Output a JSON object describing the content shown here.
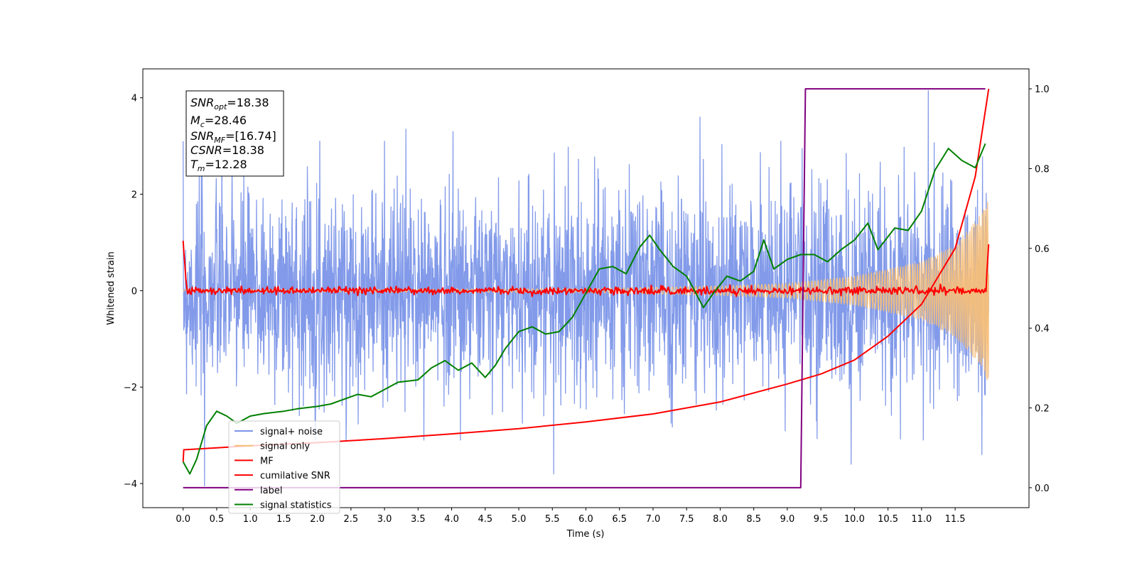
{
  "chart_data": {
    "type": "line",
    "xlabel": "Time (s)",
    "ylabel_left": "Whitened strain",
    "ylabel_right": "",
    "xlim": [
      -0.6,
      12.6
    ],
    "ylim_left": [
      -4.5,
      4.6
    ],
    "ylim_right": [
      -0.05,
      1.05
    ],
    "x_ticks": [
      0.0,
      0.5,
      1.0,
      1.5,
      2.0,
      2.5,
      3.0,
      3.5,
      4.0,
      4.5,
      5.0,
      5.5,
      6.0,
      6.5,
      7.0,
      7.5,
      8.0,
      8.5,
      9.0,
      9.5,
      10.0,
      10.5,
      11.0,
      11.5
    ],
    "x_tick_labels": [
      "0.0",
      "0.5",
      "1.0",
      "1.5",
      "2.0",
      "2.5",
      "3.0",
      "3.5",
      "4.0",
      "4.5",
      "5.0",
      "5.5",
      "6.0",
      "6.5",
      "7.0",
      "7.5",
      "8.0",
      "8.5",
      "9.0",
      "9.5",
      "10.0",
      "10.5",
      "11.0",
      "11.5"
    ],
    "y_left_ticks": [
      -4,
      -2,
      0,
      2,
      4
    ],
    "y_left_tick_labels": [
      "−4",
      "−2",
      "0",
      "2",
      "4"
    ],
    "y_right_ticks": [
      0.0,
      0.2,
      0.4,
      0.6,
      0.8,
      1.0
    ],
    "y_right_tick_labels": [
      "0.0",
      "0.2",
      "0.4",
      "0.6",
      "0.8",
      "1.0"
    ],
    "grid": false,
    "legend_position": "lower-left",
    "annotation": {
      "lines": [
        {
          "base": "SNR",
          "sub": "opt",
          "value": "=18.38"
        },
        {
          "base": "M",
          "sub": "c",
          "value": "=28.46"
        },
        {
          "base": "SNR",
          "sub": "MF",
          "value": "=[16.74]"
        },
        {
          "base": "CSNR",
          "sub": "",
          "value": "=18.38"
        },
        {
          "base": "T",
          "sub": "m",
          "value": "=12.28"
        }
      ]
    },
    "series": [
      {
        "name": "signal+ noise",
        "axis": "left",
        "color": "#7b95e8",
        "kind": "noisy",
        "x_range": [
          0.0,
          12.0
        ],
        "std": 1.05,
        "extrema": [
          {
            "x": 0.32,
            "y": -4.05
          },
          {
            "x": 3.32,
            "y": 3.35
          },
          {
            "x": 4.02,
            "y": 3.3
          },
          {
            "x": 5.52,
            "y": -3.8
          },
          {
            "x": 7.7,
            "y": 3.6
          },
          {
            "x": 9.22,
            "y": 2.95
          },
          {
            "x": 9.95,
            "y": -3.6
          },
          {
            "x": 11.1,
            "y": 4.15
          },
          {
            "x": 11.9,
            "y": -3.4
          }
        ]
      },
      {
        "name": "signal only",
        "axis": "left",
        "color": "#f5bf7a",
        "kind": "chirp",
        "x_range": [
          0.0,
          12.0
        ],
        "amp_points": [
          [
            0.0,
            0.02
          ],
          [
            6.0,
            0.04
          ],
          [
            8.0,
            0.1
          ],
          [
            9.0,
            0.15
          ],
          [
            10.0,
            0.3
          ],
          [
            11.0,
            0.6
          ],
          [
            11.5,
            0.95
          ],
          [
            11.9,
            1.6
          ],
          [
            12.0,
            2.0
          ]
        ]
      },
      {
        "name": "MF",
        "axis": "left",
        "color": "#ff0000",
        "kind": "mf",
        "x_range": [
          0.0,
          12.0
        ],
        "start": 1.0,
        "end": 1.0,
        "wiggle": 0.04
      },
      {
        "name": "cumilative SNR",
        "axis": "right",
        "color": "#ff0000",
        "kind": "curve",
        "points": [
          [
            0.0,
            0.065
          ],
          [
            0.01,
            0.095
          ],
          [
            0.5,
            0.1
          ],
          [
            1.0,
            0.105
          ],
          [
            2.0,
            0.113
          ],
          [
            3.0,
            0.123
          ],
          [
            4.0,
            0.135
          ],
          [
            5.0,
            0.148
          ],
          [
            6.0,
            0.165
          ],
          [
            7.0,
            0.185
          ],
          [
            8.0,
            0.215
          ],
          [
            9.0,
            0.26
          ],
          [
            9.5,
            0.285
          ],
          [
            10.0,
            0.32
          ],
          [
            10.5,
            0.38
          ],
          [
            11.0,
            0.46
          ],
          [
            11.5,
            0.6
          ],
          [
            11.8,
            0.78
          ],
          [
            12.0,
            1.0
          ]
        ]
      },
      {
        "name": "label",
        "axis": "right",
        "color": "#800080",
        "kind": "step",
        "points": [
          [
            0.0,
            0.0
          ],
          [
            9.2,
            0.0
          ],
          [
            9.27,
            1.0
          ],
          [
            11.95,
            1.0
          ]
        ]
      },
      {
        "name": "signal statistics",
        "axis": "left",
        "color": "#008000",
        "kind": "curve",
        "points": [
          [
            0.0,
            -3.55
          ],
          [
            0.1,
            -3.8
          ],
          [
            0.2,
            -3.5
          ],
          [
            0.35,
            -2.8
          ],
          [
            0.5,
            -2.5
          ],
          [
            0.65,
            -2.6
          ],
          [
            0.8,
            -2.75
          ],
          [
            1.0,
            -2.6
          ],
          [
            1.2,
            -2.55
          ],
          [
            1.5,
            -2.5
          ],
          [
            1.7,
            -2.45
          ],
          [
            2.0,
            -2.4
          ],
          [
            2.2,
            -2.35
          ],
          [
            2.4,
            -2.25
          ],
          [
            2.6,
            -2.15
          ],
          [
            2.8,
            -2.2
          ],
          [
            3.0,
            -2.05
          ],
          [
            3.2,
            -1.9
          ],
          [
            3.5,
            -1.85
          ],
          [
            3.7,
            -1.6
          ],
          [
            3.9,
            -1.45
          ],
          [
            4.1,
            -1.65
          ],
          [
            4.3,
            -1.5
          ],
          [
            4.5,
            -1.8
          ],
          [
            4.65,
            -1.55
          ],
          [
            4.8,
            -1.2
          ],
          [
            5.0,
            -0.85
          ],
          [
            5.2,
            -0.75
          ],
          [
            5.4,
            -0.9
          ],
          [
            5.6,
            -0.85
          ],
          [
            5.8,
            -0.55
          ],
          [
            6.0,
            -0.05
          ],
          [
            6.2,
            0.45
          ],
          [
            6.4,
            0.5
          ],
          [
            6.6,
            0.35
          ],
          [
            6.8,
            0.9
          ],
          [
            6.95,
            1.15
          ],
          [
            7.1,
            0.85
          ],
          [
            7.3,
            0.5
          ],
          [
            7.5,
            0.3
          ],
          [
            7.6,
            0.05
          ],
          [
            7.75,
            -0.35
          ],
          [
            7.9,
            -0.05
          ],
          [
            8.1,
            0.3
          ],
          [
            8.3,
            0.2
          ],
          [
            8.5,
            0.4
          ],
          [
            8.65,
            1.05
          ],
          [
            8.8,
            0.45
          ],
          [
            9.0,
            0.65
          ],
          [
            9.2,
            0.75
          ],
          [
            9.4,
            0.75
          ],
          [
            9.6,
            0.6
          ],
          [
            9.8,
            0.85
          ],
          [
            10.0,
            1.05
          ],
          [
            10.2,
            1.4
          ],
          [
            10.35,
            0.85
          ],
          [
            10.6,
            1.3
          ],
          [
            10.8,
            1.25
          ],
          [
            11.0,
            1.65
          ],
          [
            11.2,
            2.5
          ],
          [
            11.4,
            2.95
          ],
          [
            11.6,
            2.7
          ],
          [
            11.8,
            2.55
          ],
          [
            11.95,
            3.05
          ]
        ]
      }
    ]
  }
}
